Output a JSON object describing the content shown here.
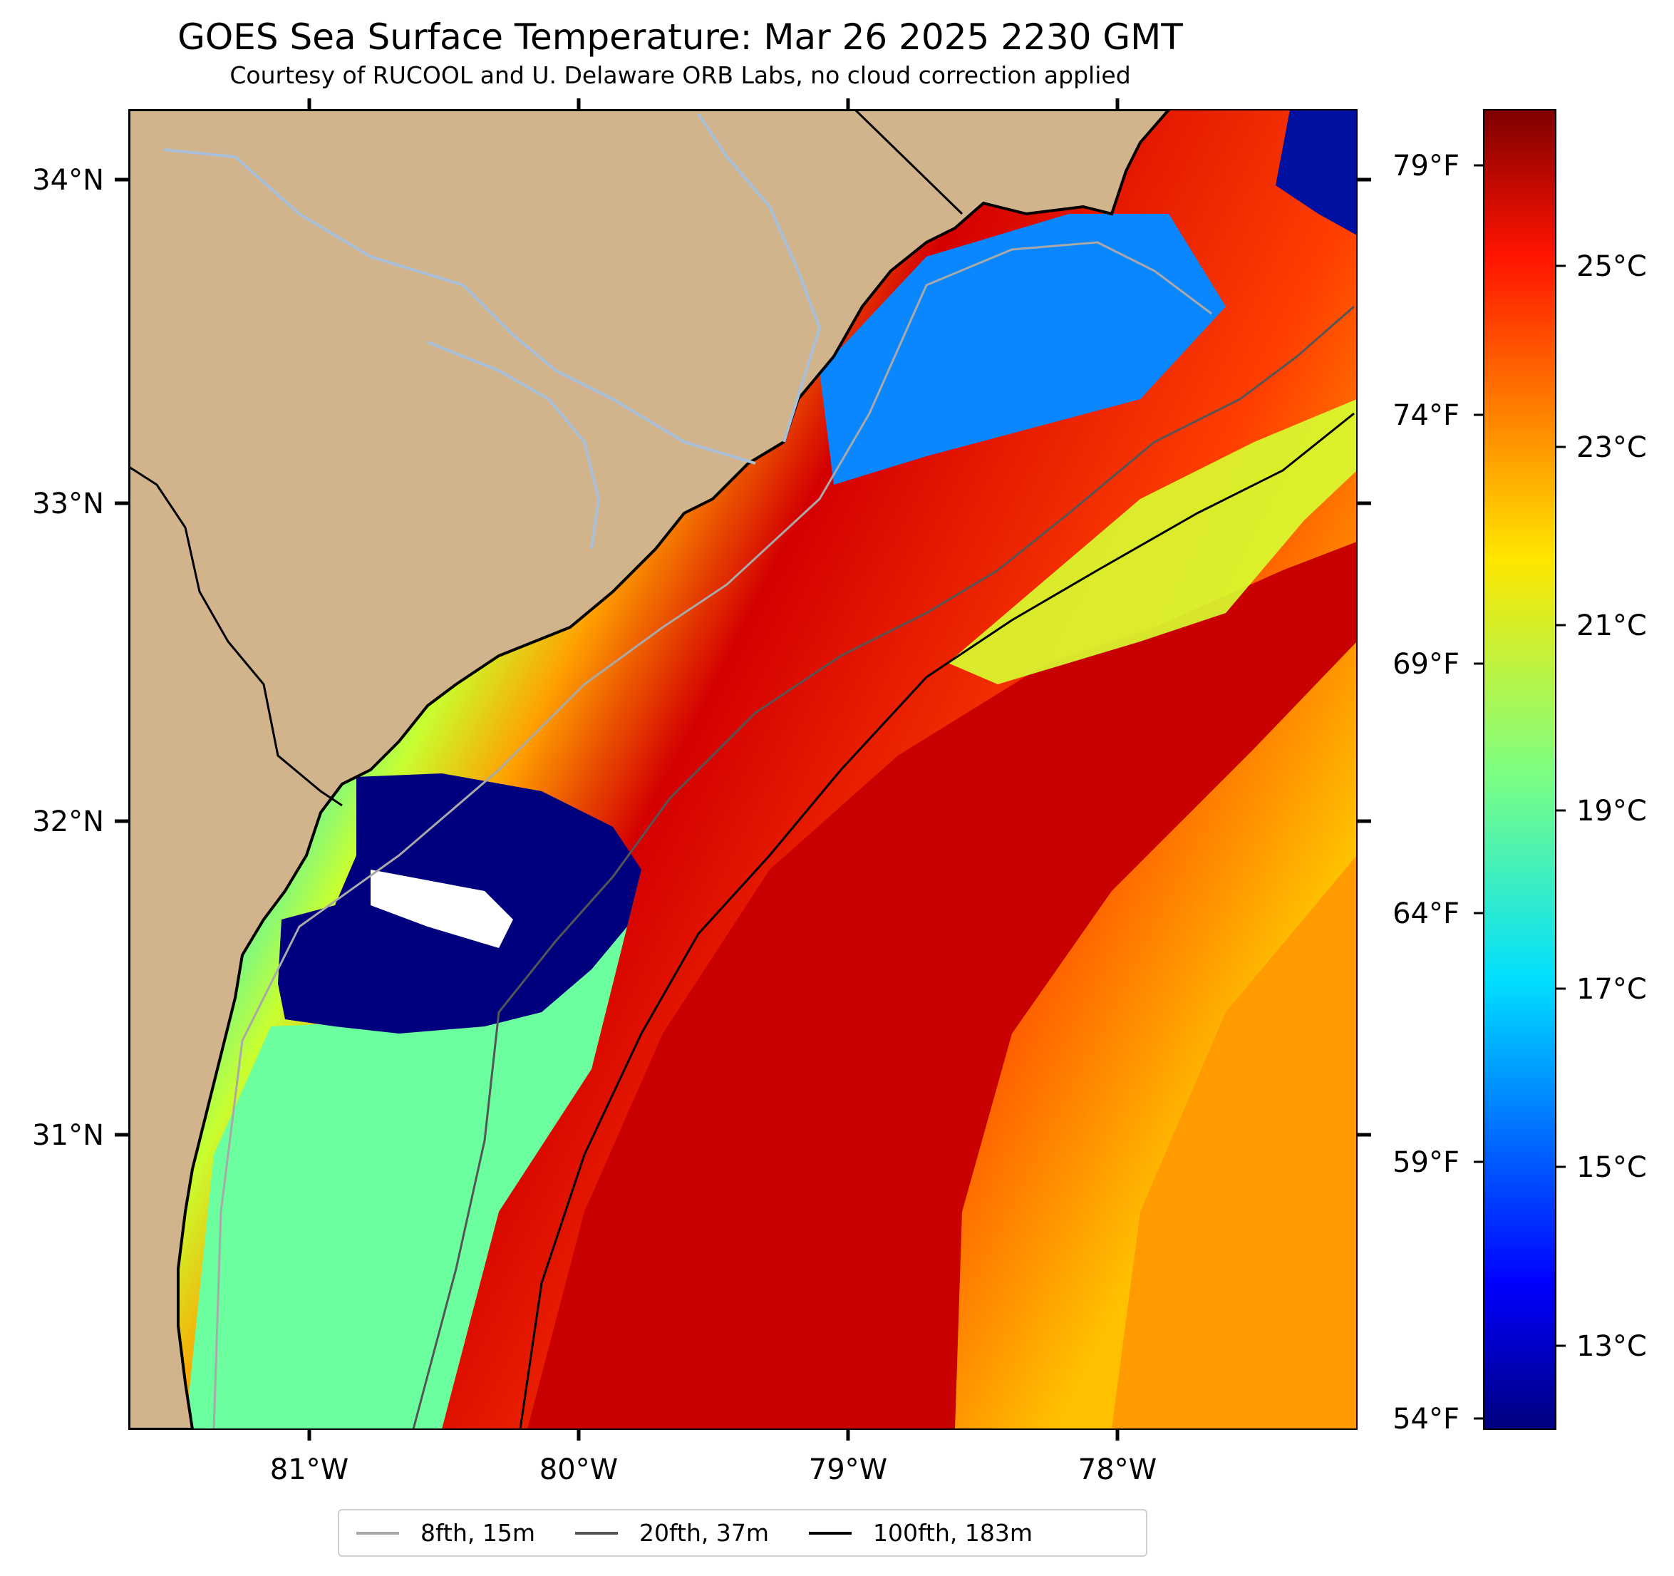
{
  "header": {
    "title": "GOES Sea Surface Temperature: Mar 26 2025 2230 GMT",
    "subtitle": "Courtesy of RUCOOL and U. Delaware ORB Labs, no cloud correction applied"
  },
  "map": {
    "lon_range": [
      -81.67,
      -77.1
    ],
    "lat_range": [
      30.08,
      34.22
    ],
    "lon_ticks": [
      "81°W",
      "80°W",
      "79°W",
      "78°W"
    ],
    "lat_ticks": [
      "34°N",
      "33°N",
      "32°N",
      "31°N"
    ],
    "land_color": "#d2b48c",
    "colors": {
      "land": "#d2b48c",
      "river": "#a7bfd8",
      "coastline": "#000000"
    }
  },
  "colorbar": {
    "colormap": "jet",
    "celsius_range": [
      12,
      27
    ],
    "celsius_ticks": [
      "13°C",
      "15°C",
      "17°C",
      "19°C",
      "21°C",
      "23°C",
      "25°C"
    ],
    "fahrenheit_ticks": [
      "79°F",
      "74°F",
      "69°F",
      "64°F",
      "59°F",
      "54°F"
    ]
  },
  "legend": [
    {
      "label": "8fth, 15m",
      "color": "#a9a9a9"
    },
    {
      "label": "20fth, 37m",
      "color": "#555555"
    },
    {
      "label": "100fth, 183m",
      "color": "#000000"
    }
  ]
}
